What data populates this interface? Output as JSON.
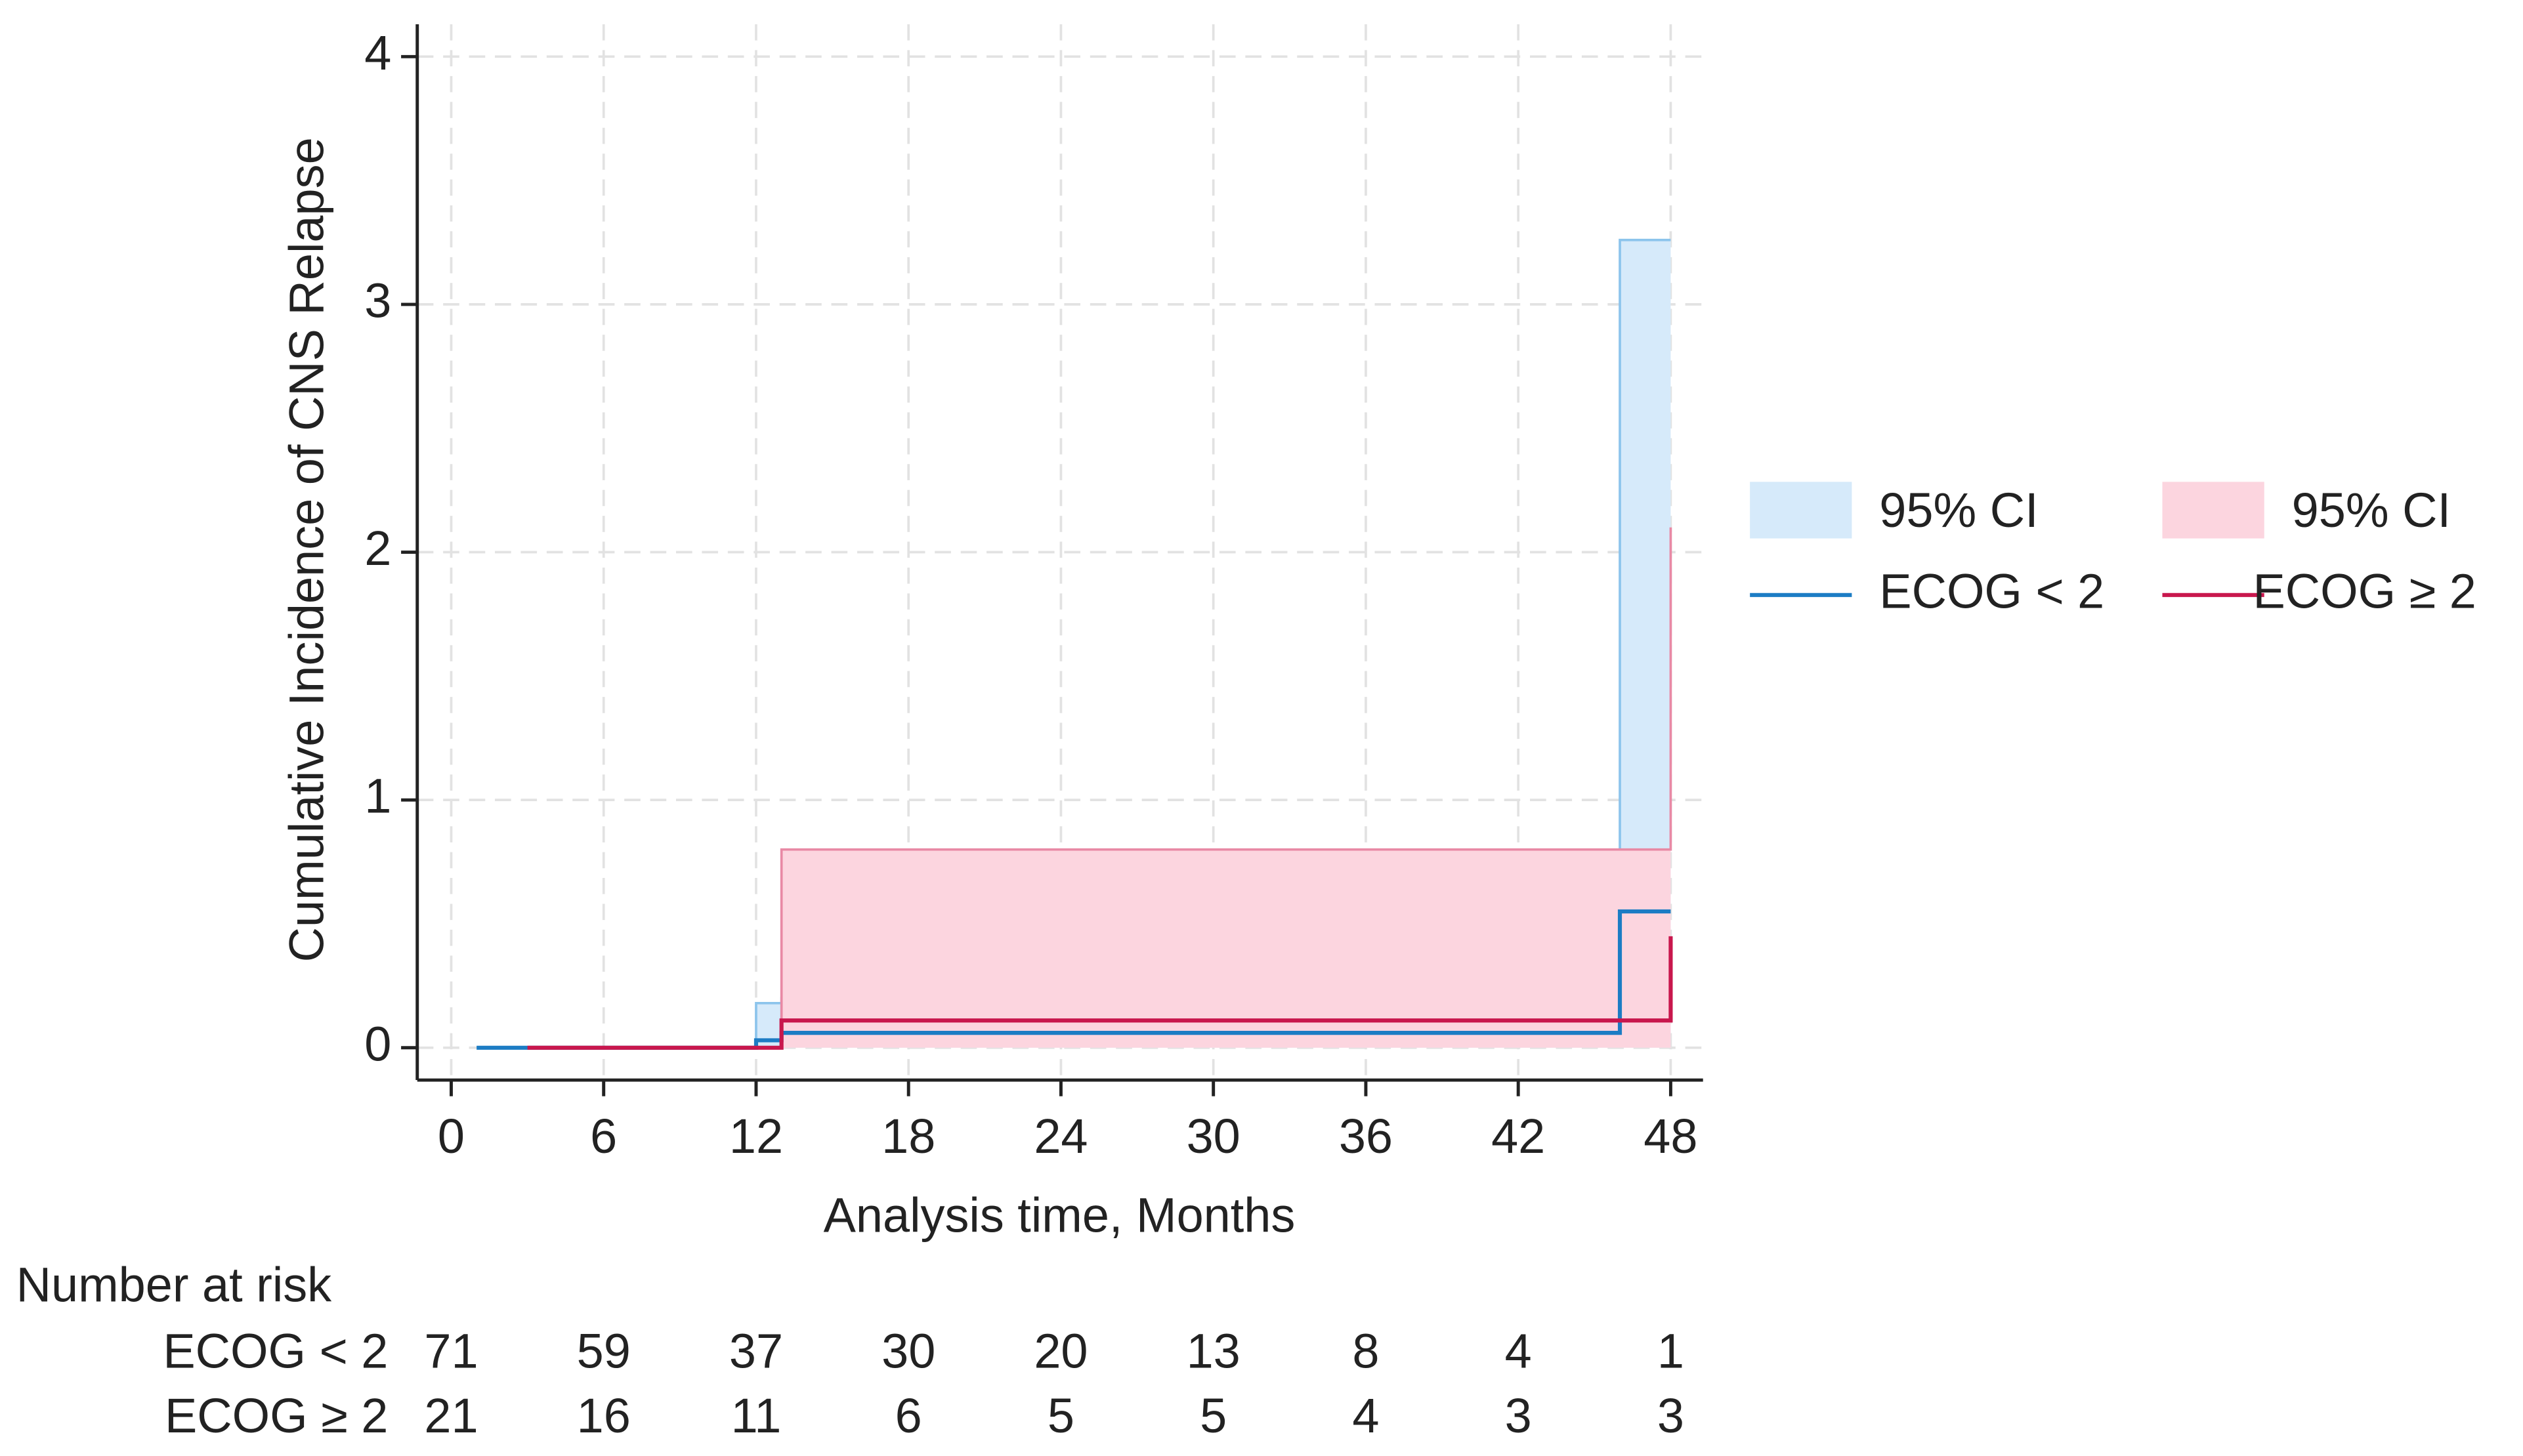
{
  "chart_data": {
    "type": "step",
    "xlabel": "Analysis time, Months",
    "ylabel": "Cumulative Incidence of CNS Relapse",
    "xlim": [
      0,
      48
    ],
    "xticks": [
      0,
      6,
      12,
      18,
      24,
      30,
      36,
      42,
      48
    ],
    "ylim": [
      0,
      4
    ],
    "yticks": [
      0,
      1,
      2,
      3,
      4
    ],
    "grid": true,
    "bands": [
      {
        "name": "95% CI",
        "color": "#d6eafa",
        "edge": "#8cc4ec",
        "x": [
          1,
          12,
          13,
          46,
          48
        ],
        "lower": [
          0,
          0,
          0,
          0,
          0
        ],
        "upper": [
          0,
          0.18,
          0.2,
          3.26,
          3.26
        ]
      },
      {
        "name": "95% CI",
        "color": "#fcd5df",
        "edge": "#e889a5",
        "x": [
          3,
          13,
          48
        ],
        "lower": [
          0,
          0,
          0
        ],
        "upper": [
          0,
          0.8,
          2.1
        ]
      }
    ],
    "series": [
      {
        "name": "ECOG < 2",
        "color": "#1c7cc4",
        "x": [
          1,
          12,
          13,
          46,
          48
        ],
        "values": [
          0,
          0.03,
          0.06,
          0.55,
          0.55
        ]
      },
      {
        "name": "ECOG ≥ 2",
        "color": "#c8174d",
        "x": [
          3,
          13,
          48
        ],
        "values": [
          0,
          0.11,
          0.45
        ]
      }
    ],
    "risk_table": {
      "title": "Number at risk",
      "rows": [
        {
          "label": "ECOG < 2",
          "values": [
            71,
            59,
            37,
            30,
            20,
            13,
            8,
            4,
            1
          ]
        },
        {
          "label": "ECOG ≥ 2",
          "values": [
            21,
            16,
            11,
            6,
            5,
            5,
            4,
            3,
            3
          ]
        }
      ]
    }
  }
}
